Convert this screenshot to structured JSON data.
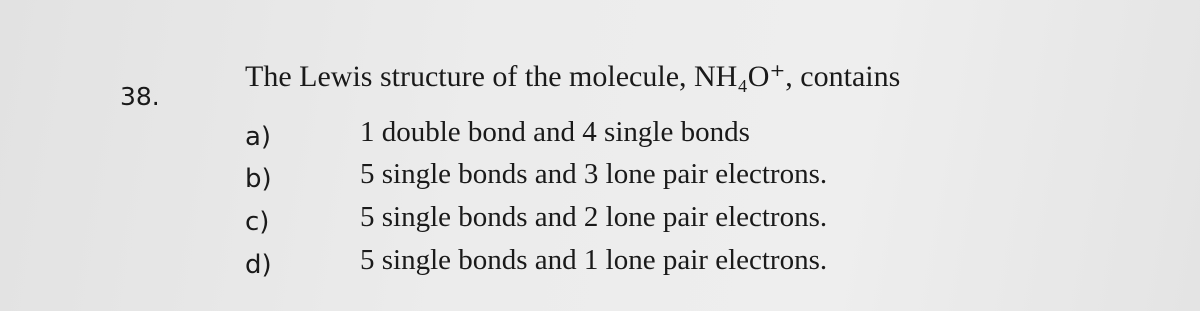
{
  "question": {
    "number": "38.",
    "text": "The Lewis structure of the molecule, NH₄O⁺, contains",
    "options": [
      {
        "label": "a)",
        "text": "1 double bond and 4 single bonds"
      },
      {
        "label": "b)",
        "text": "5 single bonds and 3 lone pair electrons."
      },
      {
        "label": "c)",
        "text": "5 single bonds and 2 lone pair electrons."
      },
      {
        "label": "d)",
        "text": "5 single bonds and 1 lone pair electrons."
      }
    ]
  }
}
